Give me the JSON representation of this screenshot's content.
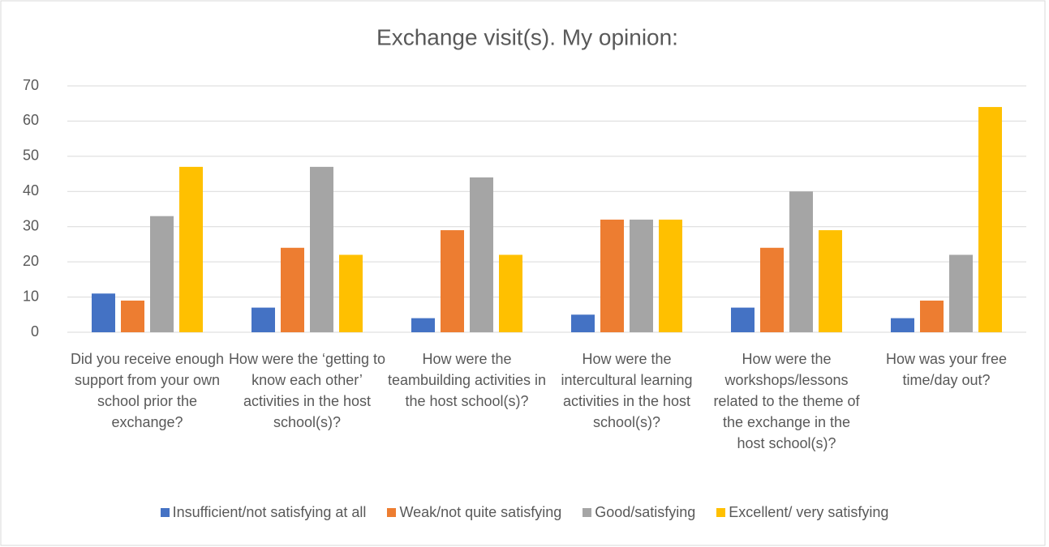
{
  "chart_data": {
    "type": "bar",
    "title": "Exchange visit(s). My opinion:",
    "categories": [
      "Did you receive enough support from your own school prior the exchange?",
      "How were the ‘getting to know each other’ activities in the host school(s)?",
      "How were the teambuilding activities in the host school(s)?",
      "How were the intercultural learning activities in the host school(s)?",
      "How were the workshops/lessons related to the theme of the exchange in the host school(s)?",
      "How was your free time/day out?"
    ],
    "series": [
      {
        "name": "Insufficient/not satisfying at all",
        "color": "#4472c4",
        "values": [
          11,
          7,
          4,
          5,
          7,
          4
        ]
      },
      {
        "name": "Weak/not quite satisfying",
        "color": "#ed7d31",
        "values": [
          9,
          24,
          29,
          32,
          24,
          9
        ]
      },
      {
        "name": "Good/satisfying",
        "color": "#a5a5a5",
        "values": [
          33,
          47,
          44,
          32,
          40,
          22
        ]
      },
      {
        "name": "Excellent/ very satisfying",
        "color": "#ffc000",
        "values": [
          47,
          22,
          22,
          32,
          29,
          64
        ]
      }
    ],
    "ylim": [
      0,
      70
    ],
    "yticks": [
      0,
      10,
      20,
      30,
      40,
      50,
      60,
      70
    ],
    "grid": true,
    "legend": "bottom"
  }
}
